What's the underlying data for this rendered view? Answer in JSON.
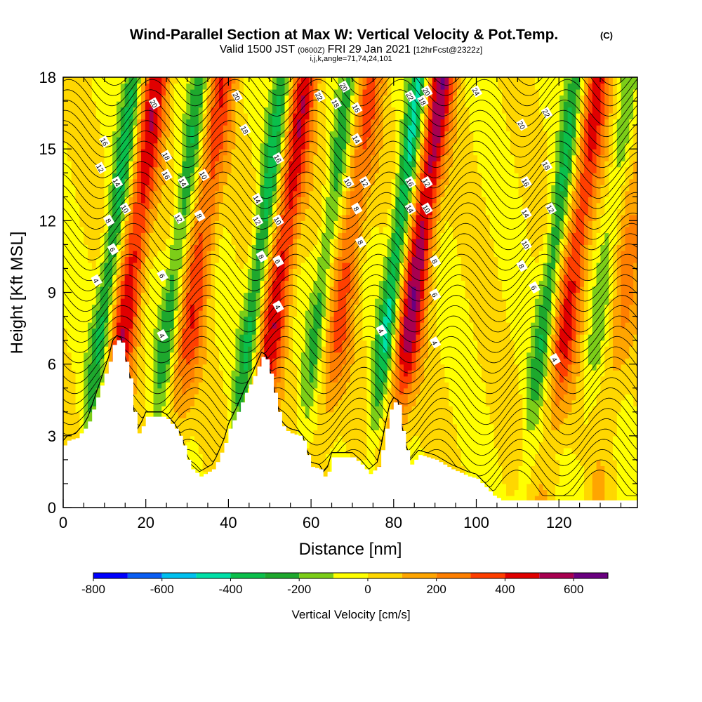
{
  "header": {
    "title_main": "Wind-Parallel Section at Max W: Vertical Velocity & Pot.Temp.",
    "title_mark": "(C)",
    "sub_valid": "Valid 1500 JST",
    "sub_z": "(0600Z)",
    "sub_date": "FRI 29 Jan 2021",
    "sub_fcst": "[12hrFcst@2322z]",
    "sub_idx": "i,j,k,angle=71,74,24,101"
  },
  "colors": {
    "palette": [
      "#0000ff",
      "#0a5ef4",
      "#00c0ef",
      "#00e0a8",
      "#0bbf4b",
      "#1ea82d",
      "#7ccd18",
      "#ffff00",
      "#ffd700",
      "#ffa500",
      "#ff7f00",
      "#ff3f00",
      "#e00000",
      "#a80050",
      "#6a0080"
    ],
    "terrain": "#ffffff",
    "contour": "#000000"
  },
  "chart_data": {
    "type": "heatmap",
    "xlabel": "Distance [nm]",
    "ylabel": "Height [Kft MSL]",
    "xlim": [
      0,
      139
    ],
    "ylim": [
      0,
      18
    ],
    "xticks": [
      "0",
      "20",
      "40",
      "60",
      "80",
      "100",
      "120"
    ],
    "xtick_values": [
      0,
      20,
      40,
      60,
      80,
      100,
      120
    ],
    "yticks": [
      "0",
      "3",
      "6",
      "9",
      "12",
      "15",
      "18"
    ],
    "ytick_values": [
      0,
      3,
      6,
      9,
      12,
      15,
      18
    ],
    "colorbar": {
      "label": "Vertical Velocity [cm/s]",
      "bounds": [
        -800,
        700
      ],
      "step": 100,
      "tick_labels": [
        "-800",
        "-600",
        "-400",
        "-200",
        "0",
        "200",
        "400",
        "600"
      ],
      "tick_values": [
        -800,
        -600,
        -400,
        -200,
        0,
        200,
        400,
        600
      ]
    },
    "waves": [
      {
        "x": 16,
        "amp": 450
      },
      {
        "x": 32,
        "amp": 350
      },
      {
        "x": 52,
        "amp": 450
      },
      {
        "x": 68,
        "amp": 300
      },
      {
        "x": 85,
        "amp": 550
      },
      {
        "x": 123,
        "amp": 400
      },
      {
        "x": 136,
        "amp": 200
      }
    ],
    "terrain": [
      [
        0,
        2.6
      ],
      [
        1,
        2.8
      ],
      [
        3,
        2.9
      ],
      [
        5,
        3.3
      ],
      [
        6,
        3.6
      ],
      [
        7,
        4.1
      ],
      [
        8,
        4.6
      ],
      [
        9,
        5.1
      ],
      [
        10,
        5.6
      ],
      [
        11,
        6.1
      ],
      [
        12,
        6.8
      ],
      [
        13,
        7.0
      ],
      [
        14,
        6.9
      ],
      [
        15,
        6.1
      ],
      [
        16,
        5.4
      ],
      [
        17,
        4.0
      ],
      [
        18,
        3.1
      ],
      [
        19,
        3.4
      ],
      [
        20,
        3.8
      ],
      [
        24,
        3.8
      ],
      [
        25,
        3.7
      ],
      [
        26,
        3.5
      ],
      [
        27,
        3.3
      ],
      [
        28,
        3.0
      ],
      [
        29,
        2.6
      ],
      [
        30,
        2.0
      ],
      [
        31,
        1.6
      ],
      [
        33,
        1.3
      ],
      [
        36,
        1.6
      ],
      [
        37,
        1.9
      ],
      [
        38,
        2.3
      ],
      [
        39,
        2.7
      ],
      [
        40,
        3.3
      ],
      [
        42,
        4.0
      ],
      [
        44,
        4.8
      ],
      [
        46,
        5.5
      ],
      [
        48,
        6.3
      ],
      [
        49,
        6.2
      ],
      [
        50,
        5.6
      ],
      [
        51,
        4.8
      ],
      [
        52,
        4.0
      ],
      [
        53,
        3.4
      ],
      [
        54,
        3.2
      ],
      [
        55,
        3.1
      ],
      [
        57,
        3.0
      ],
      [
        58,
        2.8
      ],
      [
        59,
        2.2
      ],
      [
        60,
        1.7
      ],
      [
        62,
        1.6
      ],
      [
        63,
        1.3
      ],
      [
        64,
        1.5
      ],
      [
        65,
        2.1
      ],
      [
        70,
        2.1
      ],
      [
        72,
        1.8
      ],
      [
        74,
        1.4
      ],
      [
        76,
        1.7
      ],
      [
        77,
        2.4
      ],
      [
        78,
        3.3
      ],
      [
        79,
        4.1
      ],
      [
        80,
        4.4
      ],
      [
        81,
        4.3
      ],
      [
        82,
        3.2
      ],
      [
        83,
        2.4
      ],
      [
        84,
        1.8
      ],
      [
        85,
        2.0
      ],
      [
        86,
        2.2
      ],
      [
        90,
        2.0
      ],
      [
        94,
        1.6
      ],
      [
        98,
        1.3
      ],
      [
        100,
        1.2
      ],
      [
        104,
        0.5
      ],
      [
        106,
        0.3
      ],
      [
        139,
        0.3
      ]
    ]
  }
}
